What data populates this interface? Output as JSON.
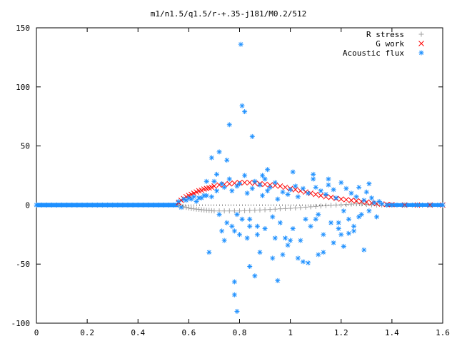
{
  "chart_data": {
    "type": "scatter",
    "title": "m1/n1.5/q1.5/r-+.35-j181/M0.2/512",
    "xlabel": "",
    "ylabel": "",
    "xlim": [
      0,
      1.6
    ],
    "ylim": [
      -100,
      150
    ],
    "x_ticks": [
      0,
      0.2,
      0.4,
      0.6,
      0.8,
      1,
      1.2,
      1.4,
      1.6
    ],
    "x_tick_labels": [
      "0",
      "0.2",
      "0.4",
      "0.6",
      "0.8",
      "1",
      "1.2",
      "1.4",
      "1.6"
    ],
    "y_ticks": [
      -100,
      -50,
      0,
      50,
      100,
      150
    ],
    "y_tick_labels": [
      "-100",
      "-50",
      "0",
      "50",
      "100",
      "150"
    ],
    "grid": false,
    "legend_position": "top-right",
    "series": [
      {
        "name": "R stress",
        "marker": "plus",
        "color": "#a0a0a0",
        "x": [
          0.56,
          0.57,
          0.58,
          0.59,
          0.6,
          0.61,
          0.62,
          0.63,
          0.64,
          0.65,
          0.66,
          0.67,
          0.68,
          0.69,
          0.7,
          0.72,
          0.74,
          0.76,
          0.78,
          0.8,
          0.82,
          0.84,
          0.86,
          0.88,
          0.9,
          0.92,
          0.94,
          0.96,
          0.98,
          1.0,
          1.02,
          1.04,
          1.06,
          1.08,
          1.1,
          1.12,
          1.14,
          1.16,
          1.18,
          1.2,
          1.22,
          1.24,
          1.26,
          1.28,
          1.3,
          1.32,
          1.34,
          1.36,
          1.38,
          1.4,
          1.45,
          1.5,
          1.55,
          1.6
        ],
        "y": [
          0,
          -1,
          -1.5,
          -2,
          -2.5,
          -3,
          -3.2,
          -3.5,
          -3.7,
          -4,
          -4.2,
          -4.4,
          -4.6,
          -4.8,
          -5,
          -5,
          -5,
          -5,
          -5,
          -5,
          -4.8,
          -4.6,
          -4.4,
          -4.2,
          -4,
          -3.8,
          -3.5,
          -3.2,
          -3,
          -2.8,
          -2.5,
          -2.2,
          -1.8,
          -1.5,
          -1.2,
          -0.8,
          -0.5,
          -0.2,
          0,
          0.2,
          0.5,
          0.8,
          1,
          1,
          0.5,
          0.2,
          0,
          0,
          0,
          0,
          0,
          0,
          0,
          0
        ]
      },
      {
        "name": "G work",
        "marker": "cross",
        "color": "#ff0000",
        "x": [
          0.56,
          0.57,
          0.58,
          0.59,
          0.6,
          0.61,
          0.62,
          0.63,
          0.64,
          0.65,
          0.66,
          0.67,
          0.68,
          0.69,
          0.7,
          0.72,
          0.74,
          0.76,
          0.78,
          0.8,
          0.82,
          0.84,
          0.86,
          0.88,
          0.9,
          0.92,
          0.94,
          0.96,
          0.98,
          1.0,
          1.02,
          1.04,
          1.06,
          1.08,
          1.1,
          1.12,
          1.14,
          1.16,
          1.18,
          1.2,
          1.22,
          1.24,
          1.26,
          1.28,
          1.3,
          1.32,
          1.34,
          1.36,
          1.38,
          1.4,
          1.45,
          1.5,
          1.55,
          1.6
        ],
        "y": [
          2,
          4,
          5.5,
          7,
          8,
          9,
          10,
          11,
          12,
          12.5,
          13.5,
          14,
          14.5,
          15,
          16,
          17,
          17.5,
          18,
          18.5,
          19,
          19,
          19,
          18.5,
          18,
          17.5,
          17,
          16.5,
          16,
          15,
          14,
          13,
          12,
          11,
          10,
          9,
          8,
          7,
          6.5,
          5.5,
          5,
          4.5,
          4,
          3.5,
          3,
          2.5,
          1.8,
          1.2,
          0.8,
          0.5,
          0.3,
          0,
          0,
          0,
          0
        ]
      },
      {
        "name": "Acoustic flux",
        "marker": "star",
        "color": "#1e90ff",
        "x": [
          0.0,
          0.02,
          0.04,
          0.06,
          0.08,
          0.1,
          0.12,
          0.14,
          0.16,
          0.18,
          0.2,
          0.22,
          0.24,
          0.26,
          0.28,
          0.3,
          0.32,
          0.34,
          0.36,
          0.38,
          0.4,
          0.42,
          0.44,
          0.46,
          0.48,
          0.5,
          0.52,
          0.54,
          0.56,
          0.58,
          0.6,
          0.62,
          0.64,
          0.66,
          0.57,
          0.59,
          0.61,
          0.63,
          0.65,
          0.67,
          0.69,
          0.71,
          0.7,
          0.72,
          0.73,
          0.74,
          0.75,
          0.76,
          0.77,
          0.78,
          0.79,
          0.8,
          0.81,
          0.82,
          0.83,
          0.84,
          0.85,
          0.86,
          0.87,
          0.88,
          0.89,
          0.9,
          0.91,
          0.92,
          0.93,
          0.94,
          0.95,
          0.96,
          0.97,
          0.98,
          0.99,
          1.0,
          1.01,
          1.02,
          1.03,
          1.04,
          1.05,
          1.06,
          1.07,
          1.08,
          1.09,
          1.1,
          1.11,
          1.12,
          1.13,
          1.14,
          1.15,
          1.16,
          1.17,
          1.18,
          1.19,
          1.2,
          1.21,
          1.22,
          1.23,
          1.24,
          1.25,
          1.26,
          1.27,
          1.28,
          1.29,
          1.3,
          1.31,
          1.32,
          1.33,
          1.34,
          1.35,
          1.36,
          1.38,
          1.4,
          1.42,
          1.44,
          1.46,
          1.48,
          1.5,
          1.52,
          1.54,
          1.56,
          1.58,
          1.6,
          0.805,
          0.79,
          0.78,
          0.85,
          0.84,
          0.76,
          0.81,
          0.78,
          0.88,
          0.82,
          0.72,
          0.68,
          0.95,
          0.74,
          0.83,
          0.91,
          1.01,
          1.09,
          0.86,
          0.77,
          0.69,
          0.93,
          1.03,
          1.17,
          1.25,
          1.21,
          0.71,
          0.79,
          0.87,
          0.97,
          1.05,
          1.13,
          1.23,
          1.29,
          0.75,
          0.89,
          0.99,
          1.07,
          1.15,
          1.27,
          0.73,
          0.84,
          0.94,
          1.11,
          1.19,
          0.67,
          0.8,
          0.9,
          1.0,
          1.1,
          1.2,
          1.31
        ],
        "y": [
          0,
          0,
          0,
          0,
          0,
          0,
          0,
          0,
          0,
          0,
          0,
          0,
          0,
          0,
          0,
          0,
          0,
          0,
          0,
          0,
          0,
          0,
          0,
          0,
          0,
          0,
          0,
          0,
          3,
          5,
          6,
          7,
          6,
          8,
          -2,
          4,
          5,
          3,
          6,
          8,
          7,
          12,
          20,
          -8,
          18,
          15,
          -15,
          22,
          12,
          -22,
          16,
          18,
          -12,
          25,
          10,
          -18,
          14,
          20,
          -25,
          17,
          8,
          -20,
          12,
          15,
          -10,
          19,
          5,
          -15,
          11,
          -28,
          9,
          13,
          -20,
          16,
          7,
          -30,
          14,
          -12,
          10,
          -18,
          22,
          15,
          -8,
          12,
          -25,
          9,
          17,
          -15,
          13,
          6,
          -20,
          19,
          -5,
          14,
          -12,
          10,
          -18,
          7,
          15,
          -8,
          4,
          11,
          -5,
          6,
          2,
          -10,
          3,
          1,
          0,
          0,
          0,
          0,
          0,
          0,
          0,
          0,
          0,
          0,
          0,
          0,
          136,
          -90,
          -65,
          58,
          -52,
          68,
          84,
          -76,
          -40,
          79,
          45,
          -40,
          -64,
          -30,
          -28,
          30,
          28,
          26,
          -60,
          -18,
          40,
          -45,
          -45,
          -32,
          -22,
          -35,
          26,
          -8,
          -18,
          -42,
          -48,
          -40,
          -24,
          -38,
          38,
          25,
          -34,
          -49,
          22,
          -10,
          -22,
          -12,
          -28,
          -42,
          -15,
          20,
          -25,
          22,
          -30,
          -12,
          -25,
          18
        ]
      }
    ]
  }
}
